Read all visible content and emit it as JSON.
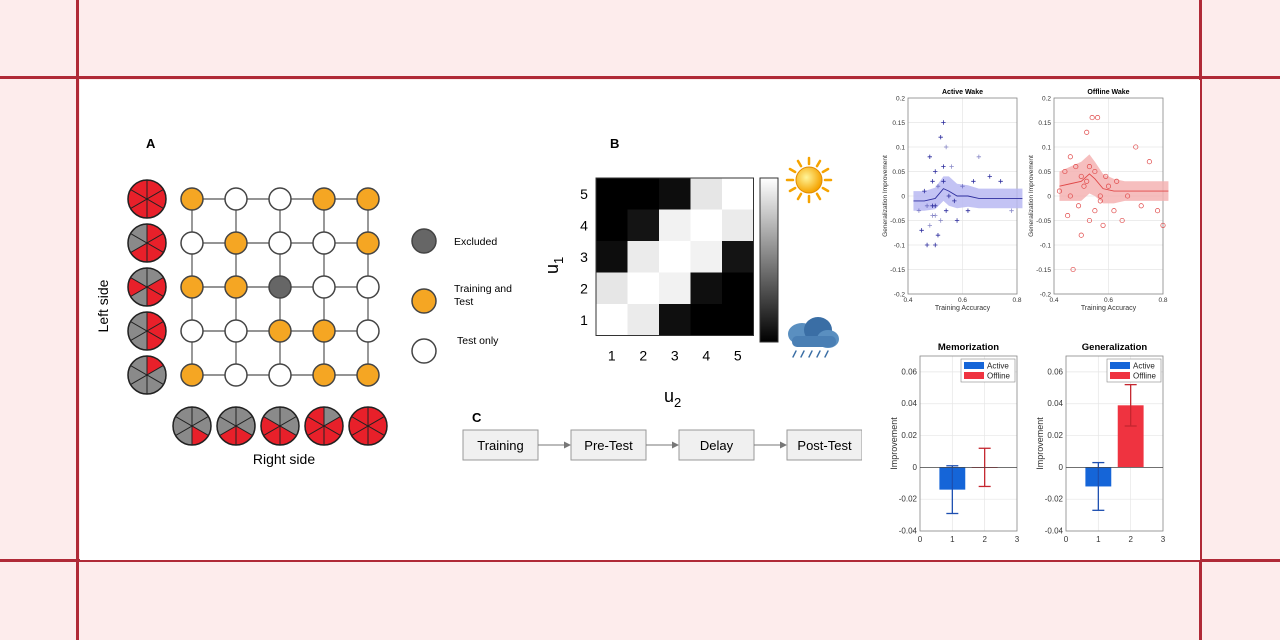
{
  "colors": {
    "frame": "#b02a37",
    "background": "#fdecec",
    "orange": "#f5a623",
    "excluded": "#666666",
    "red": "#e8202a",
    "active": "#1565d8",
    "offline": "#ef3340",
    "scatter_active": "#2e2e9e",
    "scatter_offline": "#e04848"
  },
  "panel_a": {
    "label": "A",
    "left_side": "Left side",
    "right_side": "Right side",
    "legend": {
      "excluded": "Excluded",
      "training_line1": "Training and",
      "training_line2": "Test",
      "test_only": "Test only"
    },
    "grid": [
      [
        "o",
        "w",
        "w",
        "o",
        "o"
      ],
      [
        "w",
        "o",
        "w",
        "w",
        "o"
      ],
      [
        "o",
        "o",
        "x",
        "w",
        "w"
      ],
      [
        "w",
        "w",
        "o",
        "o",
        "w"
      ],
      [
        "o",
        "w",
        "w",
        "o",
        "o"
      ]
    ],
    "left_wheels_red": [
      [
        0,
        1,
        2,
        3,
        4,
        5
      ],
      [
        0,
        1,
        2,
        3
      ],
      [
        1,
        2,
        4
      ],
      [
        0,
        1,
        2
      ],
      [
        0
      ]
    ],
    "bottom_wheels_red": [
      [
        2
      ],
      [
        2,
        3
      ],
      [
        2,
        3,
        4
      ],
      [
        1,
        2,
        3,
        4,
        5
      ],
      [
        0,
        1,
        2,
        3,
        4,
        5
      ]
    ]
  },
  "panel_b": {
    "label": "B",
    "xlabel": "u",
    "xlabel_sub": "2",
    "ylabel": "u",
    "ylabel_sub": "1",
    "xticks": [
      "1",
      "2",
      "3",
      "4",
      "5"
    ],
    "yticks": [
      "5",
      "4",
      "3",
      "2",
      "1"
    ],
    "matrix": [
      [
        0.0,
        0.0,
        0.05,
        0.9,
        1.0
      ],
      [
        0.0,
        0.08,
        0.95,
        1.0,
        0.92
      ],
      [
        0.05,
        0.92,
        1.0,
        0.95,
        0.08
      ],
      [
        0.9,
        1.0,
        0.95,
        0.06,
        0.0
      ],
      [
        1.0,
        0.92,
        0.06,
        0.0,
        0.0
      ]
    ]
  },
  "panel_c": {
    "label": "C",
    "steps": [
      "Training",
      "Pre-Test",
      "Delay",
      "Post-Test"
    ]
  },
  "chart_data": [
    {
      "type": "scatter",
      "title": "Active Wake",
      "xlabel": "Training Accuracy",
      "ylabel": "Generalization Improvement",
      "xlim": [
        0.4,
        0.8
      ],
      "ylim": [
        -0.2,
        0.2
      ],
      "xticks": [
        "0.4",
        "0.6",
        "0.8"
      ],
      "yticks": [
        "0.2",
        "0.15",
        "0.1",
        "0.05",
        "0",
        "-0.05",
        "-0.1",
        "-0.15",
        "-0.2"
      ],
      "marker": "plus",
      "x": [
        0.44,
        0.45,
        0.46,
        0.47,
        0.47,
        0.48,
        0.48,
        0.49,
        0.49,
        0.5,
        0.5,
        0.5,
        0.51,
        0.51,
        0.52,
        0.52,
        0.53,
        0.53,
        0.54,
        0.54,
        0.55,
        0.56,
        0.57,
        0.58,
        0.6,
        0.62,
        0.64,
        0.66,
        0.7,
        0.74,
        0.78,
        0.53,
        0.5,
        0.49
      ],
      "y": [
        -0.03,
        -0.07,
        0.01,
        -0.02,
        -0.1,
        0.08,
        -0.06,
        0.03,
        -0.02,
        -0.04,
        0.05,
        -0.1,
        0.02,
        -0.08,
        0.12,
        -0.05,
        0.15,
        0.06,
        0.1,
        -0.03,
        0.0,
        0.06,
        -0.01,
        -0.05,
        0.02,
        -0.03,
        0.03,
        0.08,
        0.04,
        0.03,
        -0.03,
        0.03,
        -0.02,
        -0.04
      ],
      "fit_x": [
        0.42,
        0.46,
        0.5,
        0.53,
        0.55,
        0.58,
        0.62,
        0.66,
        0.7,
        0.74,
        0.78,
        0.82
      ],
      "fit_y": [
        -0.01,
        -0.01,
        -0.005,
        0.015,
        0.01,
        0.0,
        0.0,
        -0.005,
        -0.005,
        -0.005,
        -0.005,
        -0.005
      ],
      "band_half": [
        0.02,
        0.02,
        0.022,
        0.025,
        0.03,
        0.025,
        0.022,
        0.02,
        0.02,
        0.02,
        0.02,
        0.02
      ]
    },
    {
      "type": "scatter",
      "title": "Offline Wake",
      "xlabel": "Training Accuracy",
      "ylabel": "Generalization Improvement",
      "xlim": [
        0.4,
        0.8
      ],
      "ylim": [
        -0.2,
        0.2
      ],
      "xticks": [
        "0.4",
        "0.6",
        "0.8"
      ],
      "yticks": [
        "0.2",
        "0.15",
        "0.1",
        "0.05",
        "0",
        "-0.05",
        "-0.1",
        "-0.15",
        "-0.2"
      ],
      "marker": "circle",
      "x": [
        0.42,
        0.44,
        0.45,
        0.46,
        0.47,
        0.48,
        0.49,
        0.5,
        0.5,
        0.51,
        0.52,
        0.53,
        0.53,
        0.54,
        0.55,
        0.55,
        0.56,
        0.57,
        0.58,
        0.59,
        0.6,
        0.62,
        0.63,
        0.65,
        0.67,
        0.7,
        0.72,
        0.75,
        0.78,
        0.8,
        0.46,
        0.52,
        0.57
      ],
      "y": [
        0.01,
        0.05,
        -0.04,
        0.0,
        -0.15,
        0.06,
        -0.02,
        0.04,
        -0.08,
        0.02,
        0.13,
        0.06,
        -0.05,
        0.16,
        0.05,
        -0.03,
        0.16,
        0.0,
        -0.06,
        0.04,
        0.02,
        -0.03,
        0.03,
        -0.05,
        0.0,
        0.1,
        -0.02,
        0.07,
        -0.03,
        -0.06,
        0.08,
        0.03,
        -0.01
      ],
      "fit_x": [
        0.42,
        0.46,
        0.5,
        0.53,
        0.55,
        0.58,
        0.62,
        0.66,
        0.7,
        0.74,
        0.78,
        0.82
      ],
      "fit_y": [
        0.02,
        0.025,
        0.03,
        0.045,
        0.035,
        0.015,
        0.01,
        0.01,
        0.01,
        0.01,
        0.01,
        0.01
      ],
      "band_half": [
        0.03,
        0.035,
        0.04,
        0.04,
        0.035,
        0.03,
        0.025,
        0.02,
        0.02,
        0.02,
        0.02,
        0.02
      ]
    },
    {
      "type": "bar",
      "title": "Memorization",
      "ylabel": "Improvement",
      "xlim": [
        0,
        3
      ],
      "ylim": [
        -0.04,
        0.07
      ],
      "xticks": [
        "0",
        "1",
        "2",
        "3"
      ],
      "yticks": [
        "0.06",
        "0.04",
        "0.02",
        "0",
        "-0.02",
        "-0.04"
      ],
      "legend": "top-right",
      "series": [
        {
          "name": "Active",
          "x": 1,
          "value": -0.014,
          "err": 0.015
        },
        {
          "name": "Offline",
          "x": 2,
          "value": 0.0,
          "err": 0.012
        }
      ]
    },
    {
      "type": "bar",
      "title": "Generalization",
      "ylabel": "Improvement",
      "xlim": [
        0,
        3
      ],
      "ylim": [
        -0.04,
        0.07
      ],
      "xticks": [
        "0",
        "1",
        "2",
        "3"
      ],
      "yticks": [
        "0.06",
        "0.04",
        "0.02",
        "0",
        "-0.02",
        "-0.04"
      ],
      "legend": "top-right",
      "series": [
        {
          "name": "Active",
          "x": 1,
          "value": -0.012,
          "err": 0.015
        },
        {
          "name": "Offline",
          "x": 2,
          "value": 0.039,
          "err": 0.013
        }
      ]
    }
  ]
}
